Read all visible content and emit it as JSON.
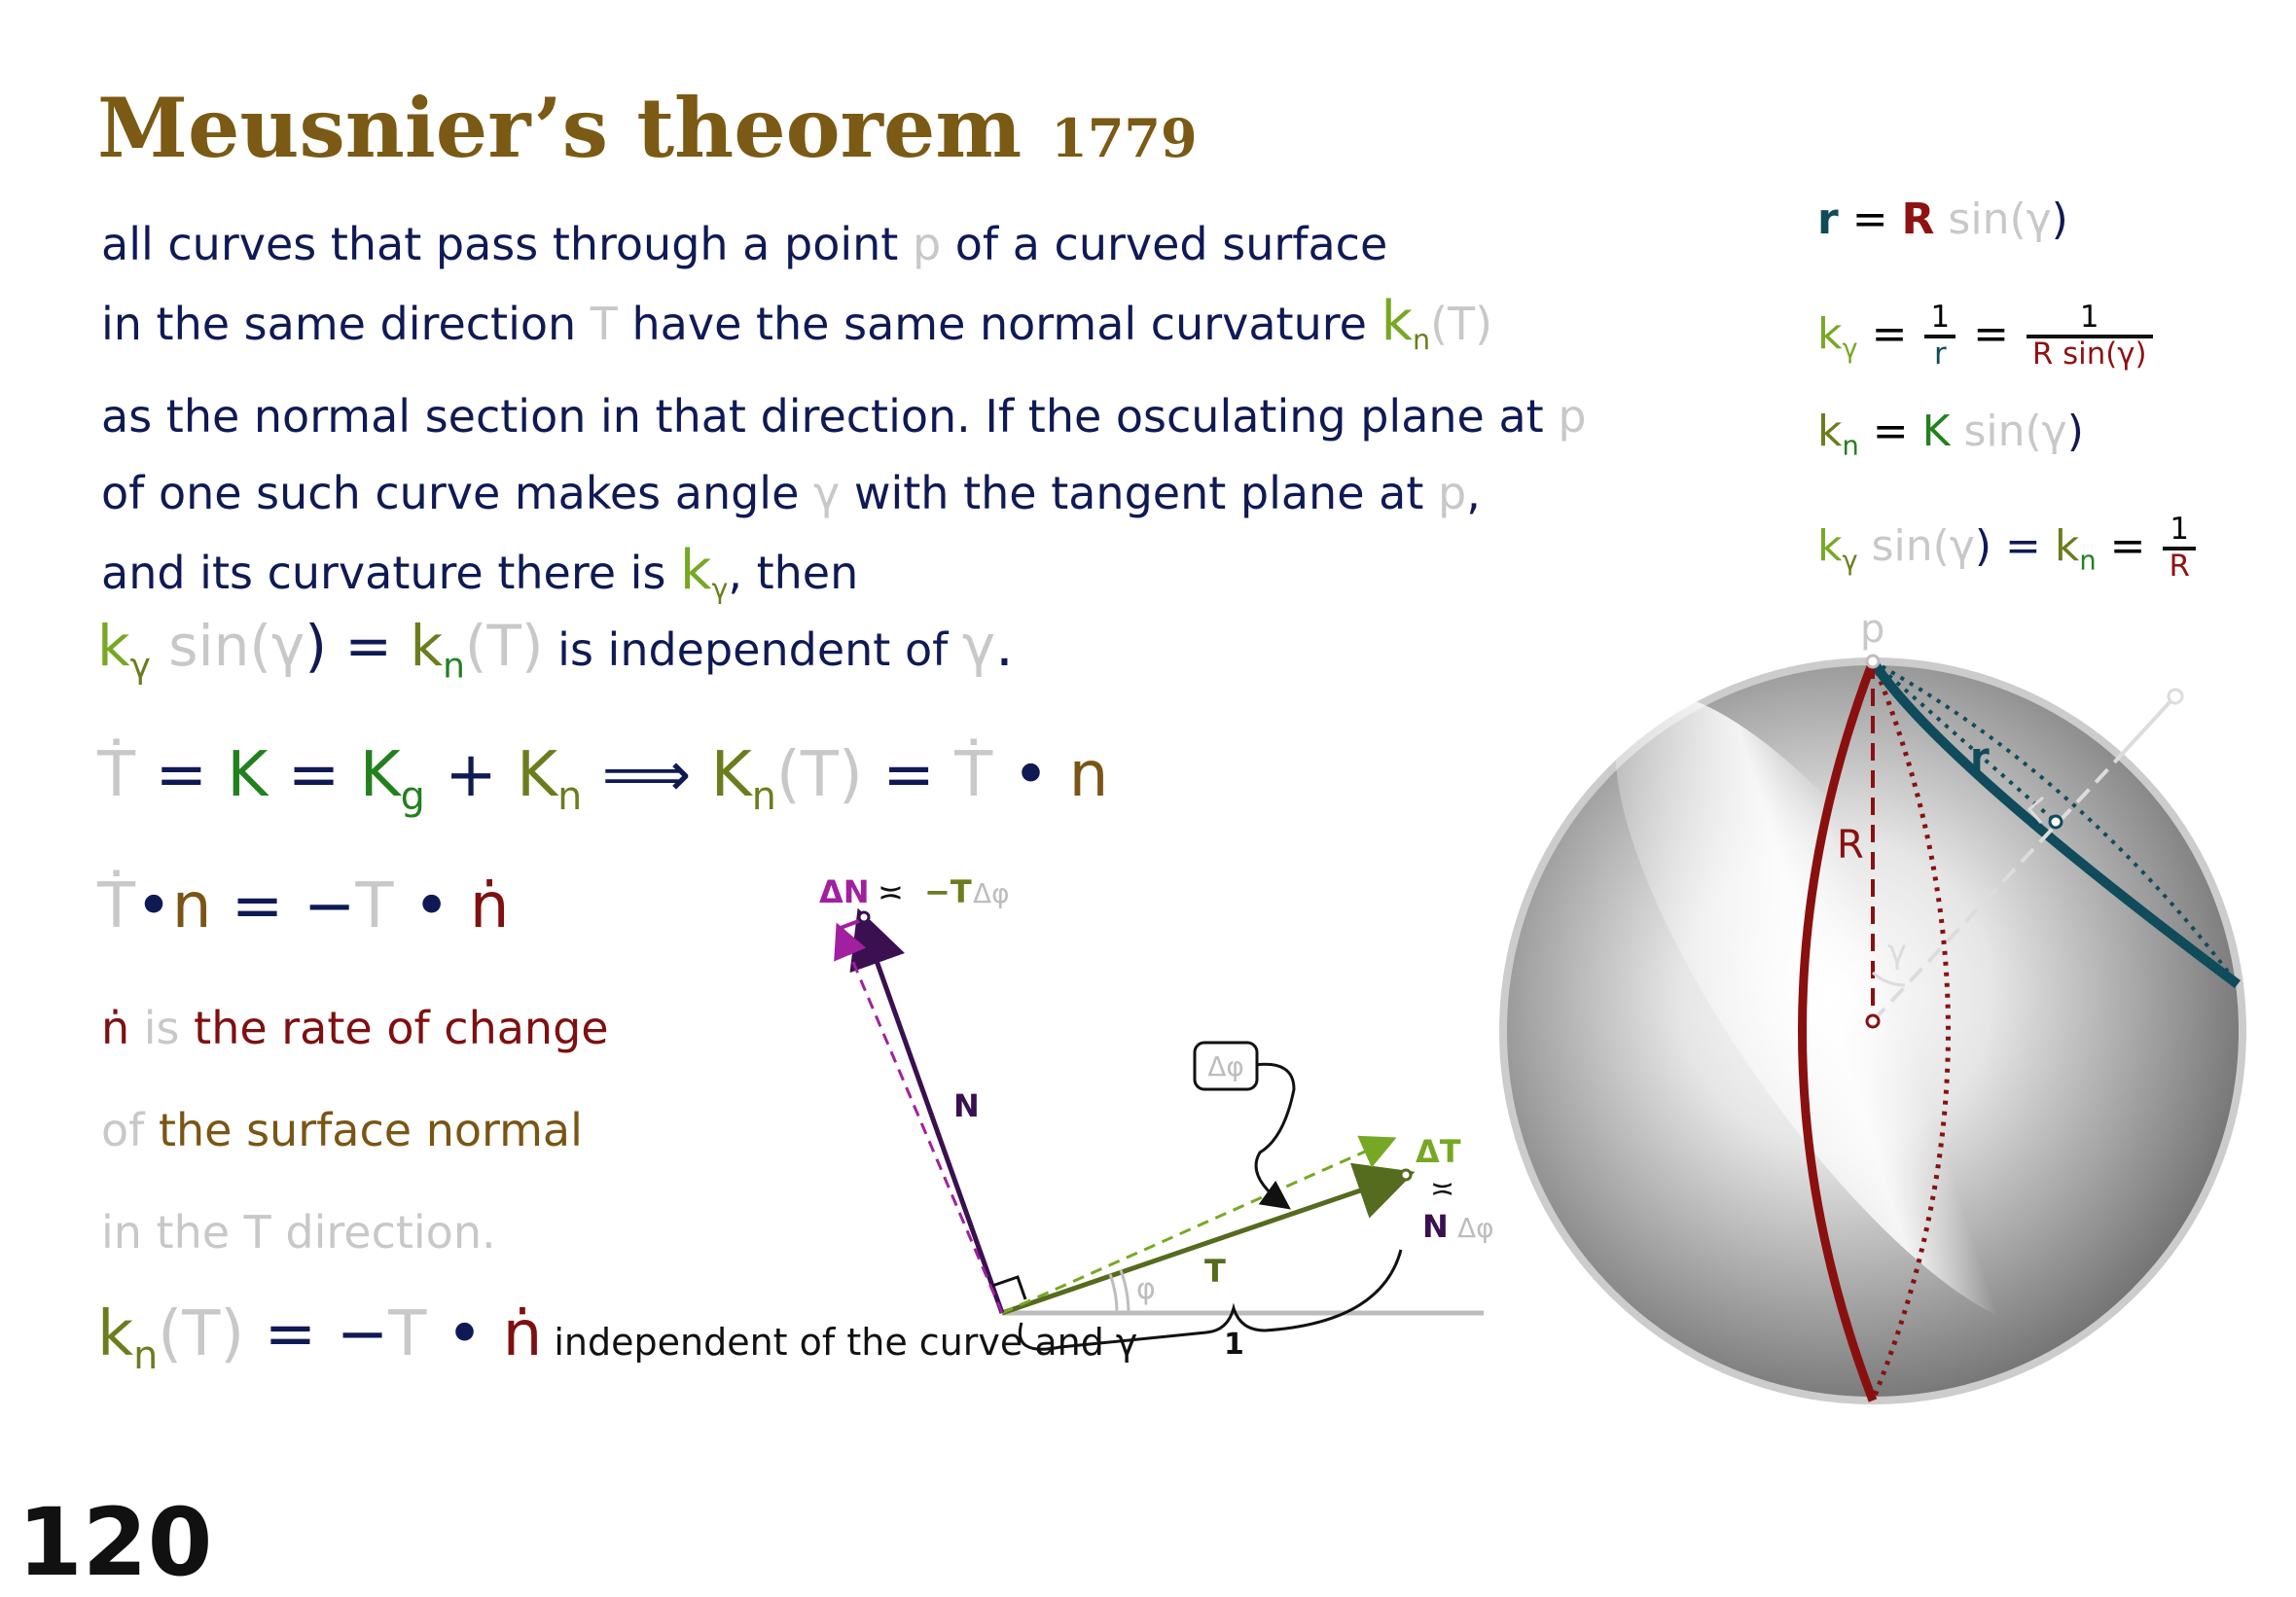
{
  "title": {
    "main": "Meusnier’s theorem",
    "year": "1779"
  },
  "statement": {
    "line1": {
      "a": "all curves that pass through a point ",
      "p": "p",
      "b": " of a curved surface"
    },
    "line2": {
      "a": "in the same direction ",
      "T": "T",
      "b": " have the same normal curvature ",
      "k": "k",
      "sub": "n",
      "arg": "(T)"
    },
    "line3": {
      "a": "as the normal section in that direction. If the osculating plane at ",
      "p": "p"
    },
    "line4": {
      "a": "of one such curve makes angle ",
      "g": "γ",
      "b": " with the tangent plane at ",
      "p": "p",
      "c": ","
    },
    "line5": {
      "a": "and its curvature there is ",
      "k": "k",
      "sub": "γ",
      "b": ", then"
    }
  },
  "eq_independent": {
    "k": "k",
    "ksub": "γ",
    "sin": " sin(",
    "g": "γ",
    "close": ") = ",
    "kn": "k",
    "knsub": "n",
    "arg": "(T)",
    "text": " is independent of ",
    "g2": "γ",
    "dot": "."
  },
  "eq_tdot": {
    "Tdot": "Ṫ",
    "eq1": " = ",
    "K": "K",
    "eq2": " = ",
    "kg": "K",
    "kgsub": "g",
    "plus": " + ",
    "kn": "K",
    "knsub": "n",
    "implies": "  ⟹  ",
    "kn2": "K",
    "kn2sub": "n",
    "arg": "(T)",
    "eq3": " = ",
    "Tdot2": "Ṫ",
    "dot": " • ",
    "n": "n"
  },
  "eq_tdotn": {
    "Tdot": "Ṫ",
    "dot1": "•",
    "n": "n",
    "eq": " = −",
    "T": "T",
    "dot2": " • ",
    "ndot": "ṅ"
  },
  "explain": {
    "l1a": "ṅ",
    "l1b": " is ",
    "l1c": "the rate of change",
    "l2a": "of ",
    "l2b": "the surface normal",
    "l3": "in the T direction."
  },
  "eq_final": {
    "kn": "k",
    "sub": "n",
    "arg": "(T)",
    "eq": " = −",
    "T": "T",
    "dot": " • ",
    "ndot": "ṅ",
    "text": "  independent of the curve and ",
    "g": "γ"
  },
  "page_number": "120",
  "right_formulas": {
    "f1": {
      "r": "r",
      "eq": " = ",
      "R": "R",
      "sin": " sin(",
      "g": "γ",
      "close": ")"
    },
    "f2": {
      "k": "k",
      "sub": "γ",
      "eq": " = ",
      "one": "1",
      "r": "r",
      "eq2": " = ",
      "one2": "1",
      "den": "R sin(γ)"
    },
    "f3": {
      "k": "k",
      "sub": "n",
      "eq": " = ",
      "K": "K",
      "sin": " sin(",
      "g": "γ",
      "close": ")"
    },
    "f4": {
      "k": "k",
      "sub": "γ",
      "sin": " sin(",
      "g": "γ",
      "close": ") = ",
      "kn": "k",
      "knsub": "n",
      "eq": " = ",
      "one": "1",
      "R": "R"
    }
  },
  "vector_diagram": {
    "delta_N_label": "ΔN",
    "approx1": " ≍ ",
    "minus_T": "−T",
    "dphi1": "Δφ",
    "N_label": "N",
    "box_label": "Δφ",
    "delta_T_label": "ΔT",
    "approx2": "≍",
    "N2": "N",
    "dphi2": "Δφ",
    "T_label": "T",
    "phi_label": "φ",
    "one_label": "1"
  },
  "sphere_diagram": {
    "p_label": "p",
    "r_label": "r",
    "R_label": "R",
    "gamma_label": "γ"
  },
  "colors": {
    "title": "#7a5a14",
    "navy": "#0f1a55",
    "grey": "#c8c8c8",
    "green": "#77a824",
    "dark_green": "#23801f",
    "olive": "#6b7d1d",
    "maroon": "#7e1010",
    "teal": "#0f4b5a",
    "magenta": "#a020a0",
    "purple": "#3a1050"
  }
}
